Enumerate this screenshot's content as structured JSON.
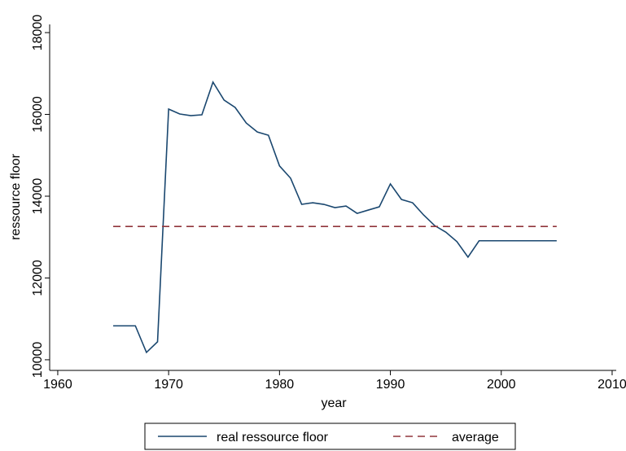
{
  "chart_data": {
    "type": "line",
    "xlabel": "year",
    "ylabel": "ressource floor",
    "xlim": [
      1959.27,
      2010.37
    ],
    "ylim": [
      9740,
      18200
    ],
    "xticks": [
      1960,
      1970,
      1980,
      1990,
      2000,
      2010
    ],
    "yticks": [
      10000,
      12000,
      14000,
      16000,
      18000
    ],
    "grid": false,
    "legend": "bottom",
    "series": [
      {
        "name": "real ressource floor",
        "color": "#1a476f",
        "dash": false,
        "x": [
          1965,
          1966,
          1967,
          1968,
          1969,
          1970,
          1971,
          1972,
          1973,
          1974,
          1975,
          1976,
          1977,
          1978,
          1979,
          1980,
          1981,
          1982,
          1983,
          1984,
          1985,
          1986,
          1987,
          1988,
          1989,
          1990,
          1991,
          1992,
          1993,
          1994,
          1995,
          1996,
          1997,
          1998,
          1999,
          2000,
          2001,
          2002,
          2003,
          2004,
          2005
        ],
        "values": [
          10830,
          10830,
          10830,
          10180,
          10440,
          16130,
          16010,
          15970,
          15990,
          16790,
          16350,
          16170,
          15790,
          15570,
          15490,
          14740,
          14440,
          13800,
          13840,
          13800,
          13720,
          13760,
          13580,
          13660,
          13740,
          14300,
          13920,
          13840,
          13540,
          13280,
          13120,
          12890,
          12510,
          12910,
          12910,
          12910,
          12910,
          12910,
          12910,
          12910,
          12910
        ]
      },
      {
        "name": "average",
        "color": "#90353b",
        "dash": true,
        "x": [
          1965,
          2005
        ],
        "values": [
          13260,
          13260
        ]
      }
    ]
  }
}
